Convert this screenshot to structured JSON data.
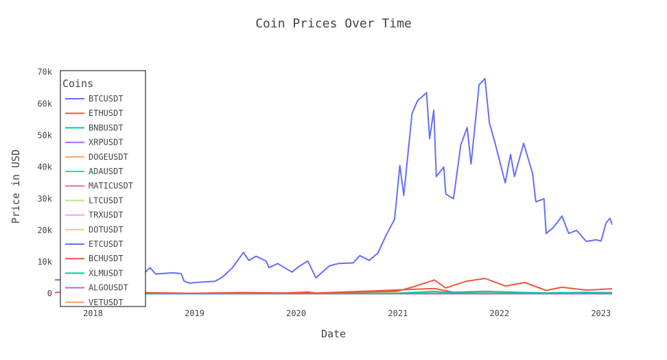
{
  "chart_data": {
    "type": "line",
    "title": "Coin Prices Over Time",
    "xlabel": "Date",
    "ylabel": "Price in USD",
    "xlim": [
      "2017-08-17",
      "2023-02-10"
    ],
    "ylim": [
      -3000,
      72000
    ],
    "x_ticks": [
      "2018",
      "2019",
      "2020",
      "2021",
      "2022",
      "2023"
    ],
    "y_ticks": [
      {
        "value": 0,
        "label": "0"
      },
      {
        "value": 10000,
        "label": "10k"
      },
      {
        "value": 20000,
        "label": "20k"
      },
      {
        "value": 30000,
        "label": "30k"
      },
      {
        "value": 40000,
        "label": "40k"
      },
      {
        "value": 50000,
        "label": "50k"
      },
      {
        "value": 60000,
        "label": "60k"
      },
      {
        "value": 70000,
        "label": "70k"
      }
    ],
    "grid": false,
    "legend": {
      "title": "Coins",
      "position": "top-left"
    },
    "series": [
      {
        "name": "BTCUSDT",
        "color": "#636efa",
        "points": [
          [
            "2017-08-17",
            4300
          ],
          [
            "2017-10-01",
            4400
          ],
          [
            "2017-11-15",
            7000
          ],
          [
            "2017-12-17",
            19000
          ],
          [
            "2018-01-15",
            13500
          ],
          [
            "2018-02-06",
            6900
          ],
          [
            "2018-03-05",
            11500
          ],
          [
            "2018-04-01",
            6900
          ],
          [
            "2018-05-05",
            9700
          ],
          [
            "2018-06-28",
            5900
          ],
          [
            "2018-07-25",
            8200
          ],
          [
            "2018-08-14",
            6200
          ],
          [
            "2018-10-15",
            6600
          ],
          [
            "2018-11-14",
            6300
          ],
          [
            "2018-11-25",
            3900
          ],
          [
            "2018-12-15",
            3300
          ],
          [
            "2019-01-15",
            3600
          ],
          [
            "2019-03-15",
            3900
          ],
          [
            "2019-04-10",
            5100
          ],
          [
            "2019-05-15",
            8000
          ],
          [
            "2019-06-26",
            13000
          ],
          [
            "2019-07-15",
            10500
          ],
          [
            "2019-08-10",
            11800
          ],
          [
            "2019-09-15",
            10300
          ],
          [
            "2019-09-26",
            8200
          ],
          [
            "2019-10-27",
            9500
          ],
          [
            "2019-12-17",
            6800
          ],
          [
            "2020-01-15",
            8800
          ],
          [
            "2020-02-12",
            10300
          ],
          [
            "2020-03-12",
            5000
          ],
          [
            "2020-04-30",
            8800
          ],
          [
            "2020-06-01",
            9500
          ],
          [
            "2020-07-25",
            9700
          ],
          [
            "2020-08-17",
            12000
          ],
          [
            "2020-09-20",
            10500
          ],
          [
            "2020-10-21",
            12800
          ],
          [
            "2020-11-20",
            18500
          ],
          [
            "2020-12-20",
            23500
          ],
          [
            "2021-01-08",
            40500
          ],
          [
            "2021-01-22",
            31000
          ],
          [
            "2021-02-21",
            57000
          ],
          [
            "2021-03-13",
            61000
          ],
          [
            "2021-04-14",
            63500
          ],
          [
            "2021-04-25",
            49000
          ],
          [
            "2021-05-10",
            58000
          ],
          [
            "2021-05-19",
            37000
          ],
          [
            "2021-06-15",
            40000
          ],
          [
            "2021-06-22",
            31500
          ],
          [
            "2021-07-20",
            30000
          ],
          [
            "2021-08-15",
            47000
          ],
          [
            "2021-09-07",
            52500
          ],
          [
            "2021-09-21",
            41000
          ],
          [
            "2021-10-20",
            66000
          ],
          [
            "2021-11-10",
            68000
          ],
          [
            "2021-11-26",
            54000
          ],
          [
            "2021-12-15",
            48000
          ],
          [
            "2022-01-22",
            35000
          ],
          [
            "2022-02-10",
            44000
          ],
          [
            "2022-02-24",
            37000
          ],
          [
            "2022-03-29",
            47500
          ],
          [
            "2022-04-30",
            38000
          ],
          [
            "2022-05-12",
            29000
          ],
          [
            "2022-06-10",
            30000
          ],
          [
            "2022-06-18",
            19000
          ],
          [
            "2022-07-15",
            21000
          ],
          [
            "2022-08-14",
            24500
          ],
          [
            "2022-09-07",
            19000
          ],
          [
            "2022-10-05",
            20000
          ],
          [
            "2022-11-09",
            16500
          ],
          [
            "2022-12-15",
            17000
          ],
          [
            "2023-01-01",
            16600
          ],
          [
            "2023-01-20",
            22500
          ],
          [
            "2023-02-02",
            23800
          ],
          [
            "2023-02-10",
            21800
          ]
        ]
      },
      {
        "name": "ETHUSDT",
        "color": "#ef553b",
        "points": [
          [
            "2017-08-17",
            300
          ],
          [
            "2018-01-13",
            1400
          ],
          [
            "2018-04-01",
            400
          ],
          [
            "2018-12-15",
            90
          ],
          [
            "2019-06-26",
            330
          ],
          [
            "2020-03-12",
            110
          ],
          [
            "2020-09-01",
            480
          ],
          [
            "2020-12-31",
            740
          ],
          [
            "2021-02-20",
            2000
          ],
          [
            "2021-05-12",
            4300
          ],
          [
            "2021-06-22",
            1800
          ],
          [
            "2021-09-03",
            3900
          ],
          [
            "2021-11-10",
            4800
          ],
          [
            "2022-01-22",
            2400
          ],
          [
            "2022-04-02",
            3500
          ],
          [
            "2022-06-18",
            1000
          ],
          [
            "2022-08-14",
            2000
          ],
          [
            "2022-11-09",
            1100
          ],
          [
            "2023-02-10",
            1500
          ]
        ]
      },
      {
        "name": "BNBUSDT",
        "color": "#00cc96",
        "points": [
          [
            "2017-11-06",
            2
          ],
          [
            "2018-01-13",
            20
          ],
          [
            "2019-06-22",
            38
          ],
          [
            "2020-12-31",
            38
          ],
          [
            "2021-02-19",
            330
          ],
          [
            "2021-05-10",
            680
          ],
          [
            "2021-07-20",
            280
          ],
          [
            "2021-11-10",
            650
          ],
          [
            "2022-06-18",
            200
          ],
          [
            "2022-11-06",
            380
          ],
          [
            "2023-02-10",
            300
          ]
        ]
      },
      {
        "name": "XRPUSDT",
        "color": "#ab63fa",
        "points": [
          [
            "2018-05-04",
            0.85
          ],
          [
            "2018-12-15",
            0.3
          ],
          [
            "2021-04-14",
            1.8
          ],
          [
            "2021-11-10",
            1.2
          ],
          [
            "2022-06-18",
            0.3
          ],
          [
            "2023-02-10",
            0.38
          ]
        ]
      },
      {
        "name": "DOGEUSDT",
        "color": "#ffa15a",
        "points": [
          [
            "2019-07-05",
            0.003
          ],
          [
            "2021-01-28",
            0.05
          ],
          [
            "2021-05-08",
            0.7
          ],
          [
            "2021-10-28",
            0.3
          ],
          [
            "2022-06-18",
            0.05
          ],
          [
            "2023-02-10",
            0.08
          ]
        ]
      },
      {
        "name": "ADAUSDT",
        "color": "#19d3f3",
        "points": [
          [
            "2018-04-17",
            0.3
          ],
          [
            "2019-06-22",
            0.1
          ],
          [
            "2021-09-02",
            3.0
          ],
          [
            "2022-06-18",
            0.45
          ],
          [
            "2023-02-10",
            0.38
          ]
        ]
      },
      {
        "name": "MATICUSDT",
        "color": "#ff6692",
        "points": [
          [
            "2019-04-26",
            0.02
          ],
          [
            "2021-05-18",
            2.5
          ],
          [
            "2021-12-27",
            2.9
          ],
          [
            "2022-06-18",
            0.35
          ],
          [
            "2023-02-10",
            1.2
          ]
        ]
      },
      {
        "name": "LTCUSDT",
        "color": "#b6e880",
        "points": [
          [
            "2017-12-13",
            300
          ],
          [
            "2018-02-10",
            150
          ],
          [
            "2018-12-15",
            25
          ],
          [
            "2019-06-22",
            140
          ],
          [
            "2020-03-12",
            35
          ],
          [
            "2021-05-10",
            410
          ],
          [
            "2021-07-20",
            110
          ],
          [
            "2021-11-10",
            280
          ],
          [
            "2022-06-18",
            45
          ],
          [
            "2023-02-10",
            95
          ]
        ]
      },
      {
        "name": "TRXUSDT",
        "color": "#ff97ff",
        "points": [
          [
            "2018-06-11",
            0.05
          ],
          [
            "2021-04-05",
            0.18
          ],
          [
            "2022-06-18",
            0.06
          ],
          [
            "2023-02-10",
            0.065
          ]
        ]
      },
      {
        "name": "DOTUSDT",
        "color": "#fecb52",
        "points": [
          [
            "2020-08-18",
            4.5
          ],
          [
            "2021-05-14",
            48
          ],
          [
            "2021-11-04",
            55
          ],
          [
            "2022-06-18",
            6.5
          ],
          [
            "2023-02-10",
            6.2
          ]
        ]
      },
      {
        "name": "ETCUSDT",
        "color": "#636efa",
        "points": [
          [
            "2018-06-12",
            15
          ],
          [
            "2019-06-22",
            9
          ],
          [
            "2021-05-06",
            170
          ],
          [
            "2022-06-18",
            13
          ],
          [
            "2023-02-10",
            21
          ]
        ]
      },
      {
        "name": "BCHUSDT",
        "color": "#ef553b",
        "points": [
          [
            "2019-11-28",
            230
          ],
          [
            "2020-02-13",
            480
          ],
          [
            "2020-03-12",
            160
          ],
          [
            "2021-05-12",
            1600
          ],
          [
            "2021-07-20",
            420
          ],
          [
            "2021-11-10",
            700
          ],
          [
            "2022-06-18",
            95
          ],
          [
            "2023-02-10",
            130
          ]
        ]
      },
      {
        "name": "XLMUSDT",
        "color": "#00cc96",
        "points": [
          [
            "2018-05-31",
            0.3
          ],
          [
            "2021-05-16",
            0.72
          ],
          [
            "2022-06-18",
            0.1
          ],
          [
            "2023-02-10",
            0.09
          ]
        ]
      },
      {
        "name": "ALGOUSDT",
        "color": "#ab63fa",
        "points": [
          [
            "2019-06-22",
            1.8
          ],
          [
            "2020-03-12",
            0.13
          ],
          [
            "2021-09-12",
            2.5
          ],
          [
            "2022-06-18",
            0.28
          ],
          [
            "2023-02-10",
            0.27
          ]
        ]
      },
      {
        "name": "VETUSDT",
        "color": "#ffa15a",
        "points": [
          [
            "2018-07-25",
            0.02
          ],
          [
            "2021-04-19",
            0.27
          ],
          [
            "2022-06-18",
            0.02
          ],
          [
            "2023-02-10",
            0.025
          ]
        ]
      }
    ]
  }
}
